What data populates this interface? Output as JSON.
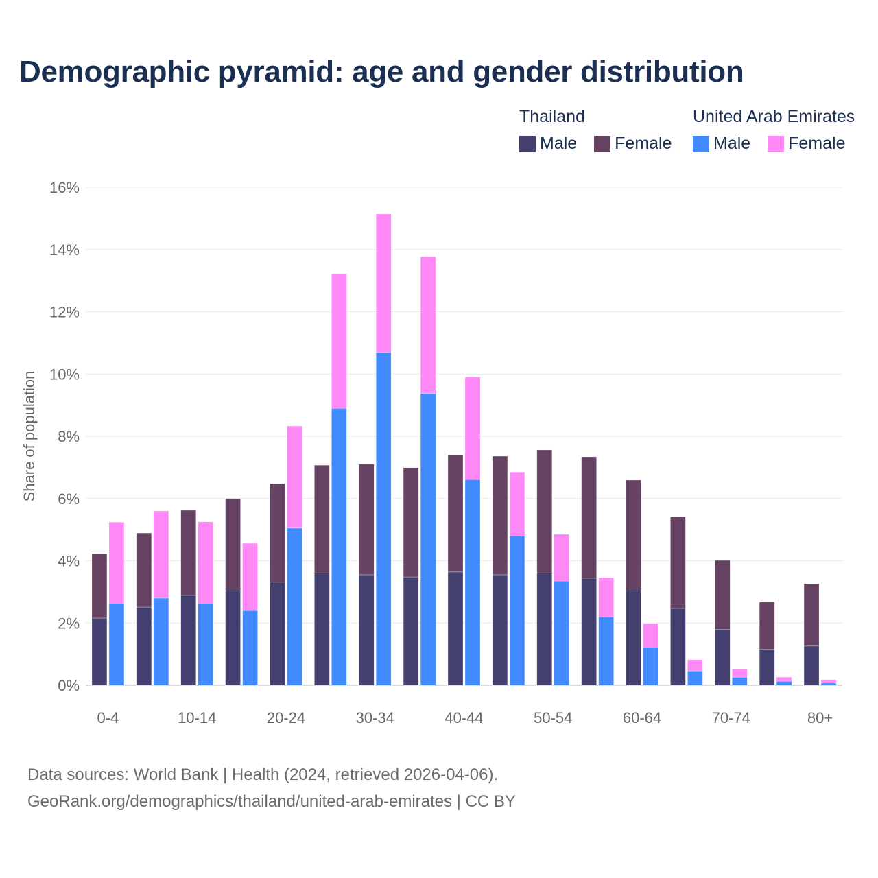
{
  "chart_data": {
    "type": "bar",
    "stacked": true,
    "title": "Demographic pyramid: age and gender distribution",
    "ylabel": "Share of population",
    "xlabel": "",
    "ylim": [
      0,
      16
    ],
    "yticks": [
      0,
      2,
      4,
      6,
      8,
      10,
      12,
      14,
      16
    ],
    "ytick_labels": [
      "0%",
      "2%",
      "4%",
      "6%",
      "8%",
      "10%",
      "12%",
      "14%",
      "16%"
    ],
    "categories": [
      "0-4",
      "5-9",
      "10-14",
      "15-19",
      "20-24",
      "25-29",
      "30-34",
      "35-39",
      "40-44",
      "45-49",
      "50-54",
      "55-59",
      "60-64",
      "65-69",
      "70-74",
      "75-79",
      "80+"
    ],
    "xtick_labels": [
      "0-4",
      "10-14",
      "20-24",
      "30-34",
      "40-44",
      "50-54",
      "60-64",
      "70-74",
      "80+"
    ],
    "legend_placement": "top-right",
    "countries": [
      {
        "name": "Thailand",
        "series": [
          {
            "name": "Male",
            "color": "#433f6f",
            "values": [
              2.16,
              2.51,
              2.89,
              3.09,
              3.31,
              3.61,
              3.55,
              3.48,
              3.64,
              3.55,
              3.61,
              3.44,
              3.09,
              2.47,
              1.79,
              1.15,
              1.26
            ]
          },
          {
            "name": "Female",
            "color": "#664262",
            "values": [
              2.07,
              2.38,
              2.73,
              2.91,
              3.17,
              3.46,
              3.55,
              3.51,
              3.76,
              3.81,
              3.95,
              3.9,
              3.5,
              2.95,
              2.22,
              1.52,
              2.0
            ]
          }
        ]
      },
      {
        "name": "United Arab Emirates",
        "series": [
          {
            "name": "Male",
            "color": "#418bff",
            "values": [
              2.64,
              2.8,
              2.64,
              2.4,
              5.05,
              8.9,
              10.69,
              9.37,
              6.61,
              4.8,
              3.35,
              2.2,
              1.23,
              0.46,
              0.26,
              0.13,
              0.07
            ]
          },
          {
            "name": "Female",
            "color": "#ff88f7",
            "values": [
              2.6,
              2.8,
              2.61,
              2.16,
              3.28,
              4.32,
              4.45,
              4.4,
              3.29,
              2.05,
              1.5,
              1.26,
              0.75,
              0.36,
              0.25,
              0.13,
              0.11
            ]
          }
        ]
      }
    ]
  },
  "footer": {
    "source": "Data sources: World Bank | Health (2024, retrieved 2026-04-06).",
    "link": "GeoRank.org/demographics/thailand/united-arab-emirates | CC BY"
  }
}
